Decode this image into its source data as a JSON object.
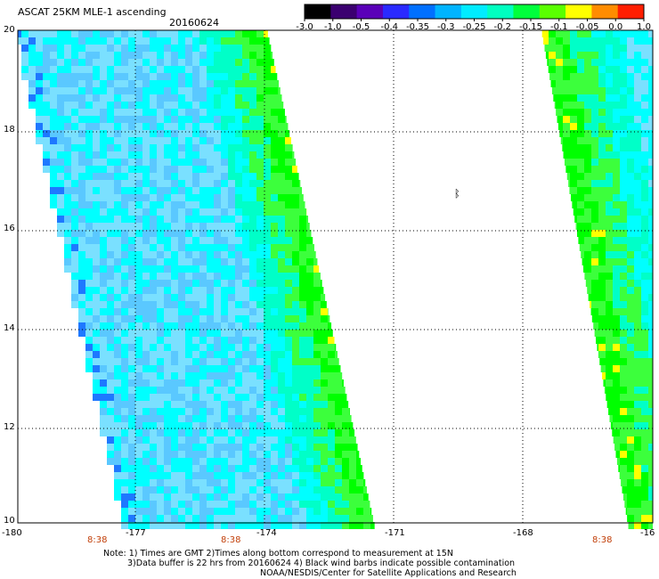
{
  "title": "ASCAT 25KM MLE-1 ascending",
  "date": "20160624",
  "colorbar": {
    "ticks": [
      "-3.0",
      "-1.0",
      "-0.5",
      "-0.4",
      "-0.35",
      "-0.3",
      "-0.25",
      "-0.2",
      "-0.15",
      "-0.1",
      "-0.05",
      "0.0",
      "1.0"
    ],
    "colors": [
      "#000000",
      "#3b0070",
      "#5a00b8",
      "#2a2aff",
      "#0070ff",
      "#00b4ff",
      "#00ecff",
      "#00ffc0",
      "#00ff3c",
      "#5aff00",
      "#ffff00",
      "#ff8c00",
      "#ff1e00"
    ]
  },
  "axes": {
    "lat_labels": [
      "20",
      "18",
      "16",
      "14",
      "12",
      "10"
    ],
    "lon_labels": [
      "-180",
      "-177",
      "-174",
      "-171",
      "-168",
      "-16"
    ],
    "time_labels": [
      "8:38",
      "8:38",
      "8:38"
    ]
  },
  "annotation": "ᛔ",
  "note": {
    "line1": "Note: 1) Times are GMT 2)Times along bottom correspond to measurement at 15N",
    "line2": "3)Data buffer is 22 hrs from 20160624 4) Black wind barbs indicate possible contamination",
    "line3": "NOAA/NESDIS/Center for Satellite Applications and Research"
  },
  "swath_colors": {
    "blue_deep": "#1e78ff",
    "blue": "#5ac8ff",
    "light_blue": "#7ae0ff",
    "cyan": "#00ffff",
    "teal": "#00ffc8",
    "green": "#3cff3c",
    "bright_green": "#00ff00",
    "yellow": "#ffff00",
    "orange": "#ff9600"
  }
}
